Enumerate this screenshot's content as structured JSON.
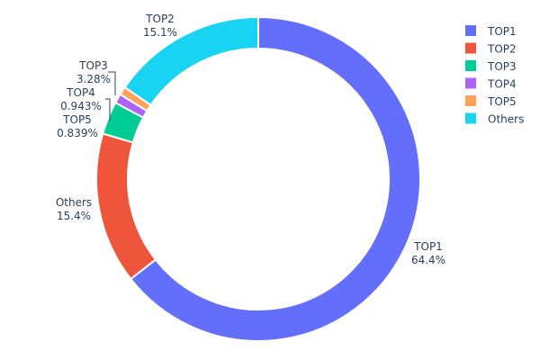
{
  "chart_data": {
    "type": "pie",
    "hole": true,
    "title": "",
    "legend_position": "top-right",
    "slices": [
      {
        "label": "TOP1",
        "value": 64.4,
        "percent_text": "64.4%",
        "color": "#636efa"
      },
      {
        "label": "TOP2",
        "value": 15.1,
        "percent_text": "15.1%",
        "color": "#ef553b"
      },
      {
        "label": "TOP3",
        "value": 3.28,
        "percent_text": "3.28%",
        "color": "#00cc96"
      },
      {
        "label": "TOP4",
        "value": 0.943,
        "percent_text": "0.943%",
        "color": "#ab63fa"
      },
      {
        "label": "TOP5",
        "value": 0.839,
        "percent_text": "0.839%",
        "color": "#ffa15a"
      },
      {
        "label": "Others",
        "value": 15.4,
        "percent_text": "15.4%",
        "color": "#19d3f3"
      }
    ]
  }
}
